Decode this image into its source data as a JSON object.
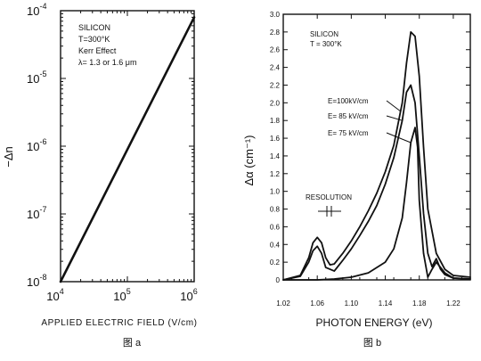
{
  "chart_data": [
    {
      "type": "line",
      "title": "",
      "annotation_lines": [
        "SILICON",
        "T=300°K",
        "Kerr Effect",
        "λ= 1.3  or  1.6 μm"
      ],
      "xlabel": "APPLIED ELECTRIC FIELD (V/cm)",
      "ylabel": "−Δn",
      "x_scale": "log",
      "y_scale": "log",
      "xlim": [
        10000,
        1000000
      ],
      "ylim": [
        1e-08,
        0.0001
      ],
      "x_ticks": [
        {
          "value": 10000,
          "base": "10",
          "exp": "4"
        },
        {
          "value": 100000,
          "base": "10",
          "exp": "5"
        },
        {
          "value": 1000000,
          "base": "10",
          "exp": "6"
        }
      ],
      "y_ticks": [
        {
          "value": 1e-08,
          "base": "10",
          "exp": "-8"
        },
        {
          "value": 1e-07,
          "base": "10",
          "exp": "-7"
        },
        {
          "value": 1e-06,
          "base": "10",
          "exp": "-6"
        },
        {
          "value": 1e-05,
          "base": "10",
          "exp": "-5"
        },
        {
          "value": 0.0001,
          "base": "10",
          "exp": "-4"
        }
      ],
      "series": [
        {
          "x": [
            10000,
            1000000
          ],
          "y": [
            1e-08,
            8e-05
          ]
        }
      ],
      "caption": "图 a"
    },
    {
      "type": "line",
      "title": "",
      "annotation_lines": [
        "SILICON",
        "T = 300°K"
      ],
      "xlabel": "PHOTON ENERGY (eV)",
      "ylabel": "Δα (cm⁻¹)",
      "xlim": [
        1.02,
        1.24
      ],
      "ylim": [
        0,
        3.0
      ],
      "x_ticks": [
        "1.02",
        "1.06",
        "1.10",
        "1.14",
        "1.18",
        "1.22"
      ],
      "y_ticks": [
        "0",
        "0.2",
        "0.4",
        "0.6",
        "0.8",
        "1.0",
        "1.2",
        "1.4",
        "1.6",
        "1.8",
        "2.0",
        "2.2",
        "2.4",
        "2.6",
        "2.8",
        "3.0"
      ],
      "resolution_label": "RESOLUTION",
      "series": [
        {
          "name": "E=100kV/cm",
          "x": [
            1.02,
            1.04,
            1.05,
            1.055,
            1.06,
            1.065,
            1.07,
            1.075,
            1.08,
            1.09,
            1.1,
            1.11,
            1.12,
            1.13,
            1.14,
            1.15,
            1.16,
            1.165,
            1.17,
            1.175,
            1.18,
            1.185,
            1.19,
            1.2,
            1.21,
            1.22,
            1.24
          ],
          "y": [
            0.0,
            0.05,
            0.25,
            0.42,
            0.48,
            0.42,
            0.25,
            0.17,
            0.18,
            0.3,
            0.44,
            0.6,
            0.78,
            0.98,
            1.22,
            1.52,
            2.0,
            2.45,
            2.8,
            2.75,
            2.3,
            1.5,
            0.8,
            0.3,
            0.12,
            0.05,
            0.03
          ]
        },
        {
          "name": "E= 85 kV/cm",
          "x": [
            1.02,
            1.04,
            1.05,
            1.055,
            1.06,
            1.065,
            1.07,
            1.08,
            1.09,
            1.1,
            1.11,
            1.12,
            1.13,
            1.14,
            1.15,
            1.16,
            1.165,
            1.17,
            1.175,
            1.18,
            1.185,
            1.19,
            1.195,
            1.2,
            1.205,
            1.21,
            1.22,
            1.24
          ],
          "y": [
            0.0,
            0.04,
            0.2,
            0.33,
            0.38,
            0.3,
            0.14,
            0.1,
            0.22,
            0.35,
            0.5,
            0.66,
            0.84,
            1.08,
            1.38,
            1.8,
            2.12,
            2.2,
            2.0,
            1.4,
            0.75,
            0.3,
            0.15,
            0.24,
            0.12,
            0.06,
            0.02,
            0.01
          ]
        },
        {
          "name": "E= 75 kV/cm",
          "x": [
            1.02,
            1.06,
            1.08,
            1.1,
            1.12,
            1.14,
            1.15,
            1.16,
            1.165,
            1.17,
            1.175,
            1.178,
            1.18,
            1.185,
            1.19,
            1.195,
            1.2,
            1.21,
            1.22,
            1.24
          ],
          "y": [
            0.0,
            0.0,
            0.01,
            0.03,
            0.08,
            0.2,
            0.35,
            0.7,
            1.1,
            1.55,
            1.72,
            1.5,
            0.9,
            0.3,
            0.03,
            0.12,
            0.2,
            0.08,
            0.02,
            0.01
          ]
        }
      ],
      "caption": "图 b"
    }
  ]
}
